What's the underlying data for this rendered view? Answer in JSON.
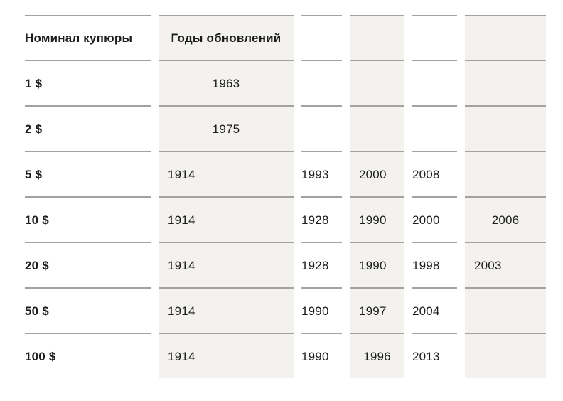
{
  "colors": {
    "stripe_background": "#f3f2ef",
    "cell_border": "#a3a2a0",
    "text": "#1d1d1b"
  },
  "table": {
    "title": "usd-banknote-update-years-table",
    "header": [
      {
        "v": "Номинал купюры",
        "align": "left"
      },
      {
        "v": "Годы обновлений",
        "align": "center"
      },
      {
        "v": "",
        "align": "left"
      },
      {
        "v": "",
        "align": "left"
      },
      {
        "v": "",
        "align": "left"
      },
      {
        "v": "",
        "align": "left"
      }
    ],
    "rows": [
      [
        {
          "v": "1 $",
          "align": "left"
        },
        {
          "v": "1963",
          "align": "center"
        },
        {
          "v": "",
          "align": "left"
        },
        {
          "v": "",
          "align": "left"
        },
        {
          "v": "",
          "align": "left"
        },
        {
          "v": "",
          "align": "left"
        }
      ],
      [
        {
          "v": "2 $",
          "align": "left"
        },
        {
          "v": "1975",
          "align": "center"
        },
        {
          "v": "",
          "align": "left"
        },
        {
          "v": "",
          "align": "left"
        },
        {
          "v": "",
          "align": "left"
        },
        {
          "v": "",
          "align": "left"
        }
      ],
      [
        {
          "v": "5 $",
          "align": "left"
        },
        {
          "v": "1914",
          "align": "left"
        },
        {
          "v": "1993",
          "align": "left"
        },
        {
          "v": "2000",
          "align": "left"
        },
        {
          "v": "2008",
          "align": "left"
        },
        {
          "v": "",
          "align": "left"
        }
      ],
      [
        {
          "v": "10 $",
          "align": "left"
        },
        {
          "v": "1914",
          "align": "left"
        },
        {
          "v": "1928",
          "align": "left"
        },
        {
          "v": "1990",
          "align": "left"
        },
        {
          "v": "2000",
          "align": "left"
        },
        {
          "v": "2006",
          "align": "center"
        }
      ],
      [
        {
          "v": "20 $",
          "align": "left"
        },
        {
          "v": "1914",
          "align": "left"
        },
        {
          "v": "1928",
          "align": "left"
        },
        {
          "v": "1990",
          "align": "left"
        },
        {
          "v": "1998",
          "align": "left"
        },
        {
          "v": "2003",
          "align": "left"
        }
      ],
      [
        {
          "v": "50 $",
          "align": "left"
        },
        {
          "v": "1914",
          "align": "left"
        },
        {
          "v": "1990",
          "align": "left"
        },
        {
          "v": "1997",
          "align": "left"
        },
        {
          "v": "2004",
          "align": "left"
        },
        {
          "v": "",
          "align": "left"
        }
      ],
      [
        {
          "v": "100 $",
          "align": "left"
        },
        {
          "v": "1914",
          "align": "left"
        },
        {
          "v": "1990",
          "align": "left"
        },
        {
          "v": "1996",
          "align": "center"
        },
        {
          "v": "2013",
          "align": "left"
        },
        {
          "v": "",
          "align": "left"
        }
      ]
    ]
  }
}
